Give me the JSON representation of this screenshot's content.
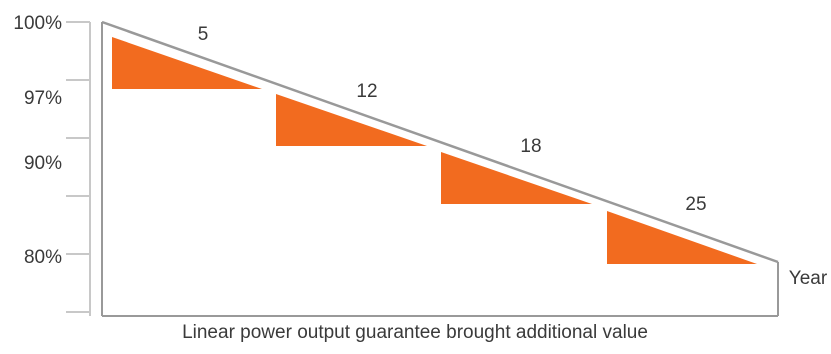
{
  "chart_data": {
    "type": "area",
    "title": "",
    "caption": "Linear power output guarantee brought additional value",
    "xlabel": "Year",
    "ylabel": "",
    "y_tick_labels": [
      "100%",
      "97%",
      "90%",
      "80%"
    ],
    "y_tick_count": 6,
    "step_labels": [
      "5",
      "12",
      "18",
      "25"
    ],
    "series": [
      {
        "name": "",
        "values": [
          100,
          97,
          90,
          80
        ]
      }
    ],
    "colors": {
      "fill": "#f26b1f",
      "line": "#999999",
      "axis": "#c8c8c8",
      "text": "#3a3a3a"
    }
  }
}
